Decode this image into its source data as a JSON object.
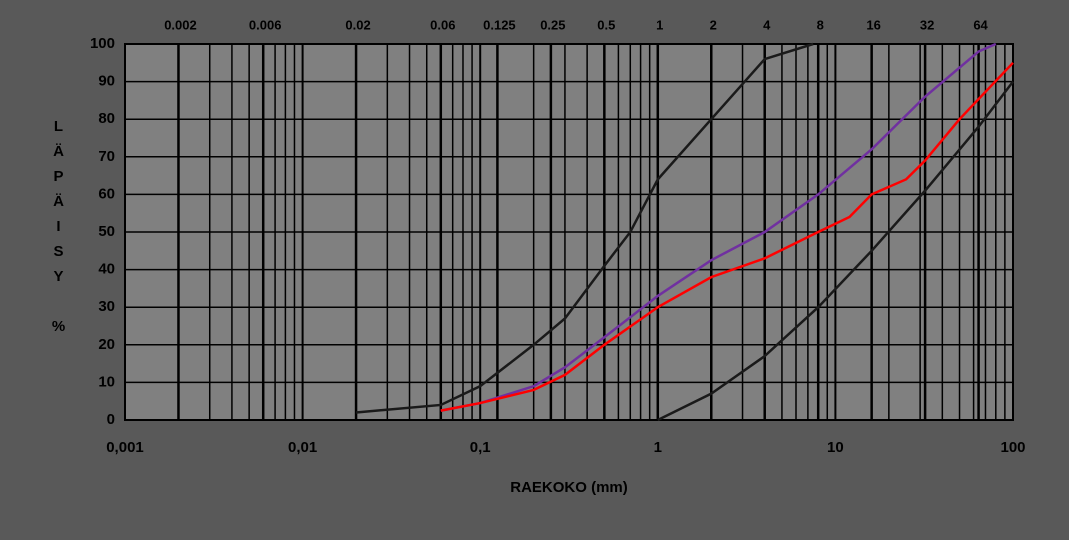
{
  "chart_data": {
    "type": "line",
    "xlabel": "RAEKOKO (mm)",
    "ylabel": "LÄPÄISY %",
    "xscale": "log",
    "xlim": [
      0.001,
      100
    ],
    "ylim": [
      0,
      100
    ],
    "xticks": [
      {
        "value": 0.001,
        "label": "0,001"
      },
      {
        "value": 0.01,
        "label": "0,01"
      },
      {
        "value": 0.1,
        "label": "0,1"
      },
      1,
      10,
      100
    ],
    "x2ticks": [
      0.002,
      0.006,
      0.02,
      0.06,
      0.125,
      0.25,
      0.5,
      1,
      2,
      4,
      8,
      16,
      32,
      64
    ],
    "yticks": [
      0,
      10,
      20,
      30,
      40,
      50,
      60,
      70,
      80,
      90,
      100
    ],
    "grid": true,
    "series": [
      {
        "color": "#1a1a1a",
        "x": [
          0.02,
          0.06,
          0.1,
          0.2,
          0.3,
          0.5,
          0.7,
          1,
          2,
          4,
          7.5
        ],
        "values": [
          2,
          4,
          9,
          20,
          27,
          41,
          50,
          64,
          80,
          96,
          100
        ]
      },
      {
        "color": "#7030a0",
        "x": [
          0.06,
          0.1,
          0.2,
          0.3,
          0.5,
          1,
          2,
          4,
          8,
          16,
          32,
          64,
          80
        ],
        "values": [
          2.5,
          4.5,
          9,
          14,
          22,
          33,
          42.5,
          50,
          60,
          72,
          86,
          98,
          100
        ]
      },
      {
        "color": "#ff0000",
        "x": [
          0.06,
          0.1,
          0.2,
          0.3,
          0.5,
          1,
          2,
          4,
          8,
          12,
          16,
          25,
          32,
          50,
          100
        ],
        "values": [
          2.5,
          4.5,
          8,
          12,
          20,
          30,
          38,
          43,
          50,
          54,
          60,
          64,
          69,
          80,
          95
        ]
      },
      {
        "color": "#1a1a1a",
        "x": [
          1,
          2,
          4,
          8,
          16,
          32,
          64,
          100
        ],
        "values": [
          0,
          7,
          17,
          30,
          45,
          61,
          78,
          90
        ]
      }
    ]
  }
}
